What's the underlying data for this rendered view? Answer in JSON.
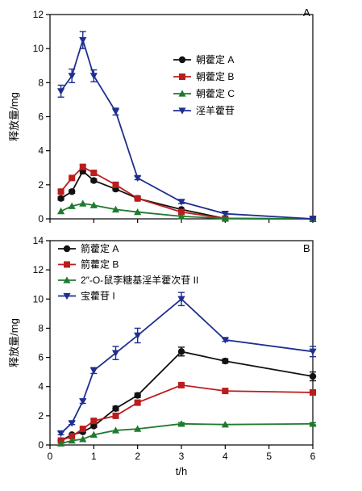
{
  "chart_data": [
    {
      "type": "line",
      "panel_label": "A",
      "xlabel": "",
      "ylabel": "释放量/mg",
      "x": [
        0.25,
        0.5,
        0.75,
        1,
        1.5,
        2,
        3,
        4,
        6
      ],
      "xlim": [
        0,
        6
      ],
      "ylim": [
        0,
        12
      ],
      "xticks": [],
      "yticks": [
        0,
        2,
        4,
        6,
        8,
        10,
        12
      ],
      "grid": false,
      "legend_position": "top-right",
      "series": [
        {
          "name": "朝藿定 A",
          "color": "#111111",
          "marker": "circle",
          "values": [
            1.2,
            1.6,
            2.8,
            2.25,
            1.75,
            1.2,
            0.55,
            0.02,
            0.0
          ],
          "errors": [
            0.1,
            0.1,
            0.15,
            0.1,
            0.1,
            0.05,
            0.05,
            0.02,
            0.02
          ]
        },
        {
          "name": "朝藿定 B",
          "color": "#bb1c1c",
          "marker": "square",
          "values": [
            1.6,
            2.4,
            3.05,
            2.7,
            2.0,
            1.2,
            0.4,
            0.02,
            0.0
          ],
          "errors": [
            0.1,
            0.1,
            0.15,
            0.1,
            0.1,
            0.05,
            0.05,
            0.02,
            0.02
          ]
        },
        {
          "name": "朝藿定 C",
          "color": "#1f7a2f",
          "marker": "triangle-up",
          "values": [
            0.45,
            0.75,
            0.9,
            0.8,
            0.55,
            0.4,
            0.15,
            0.02,
            0.0
          ],
          "errors": [
            0.05,
            0.05,
            0.05,
            0.05,
            0.05,
            0.03,
            0.03,
            0.02,
            0.02
          ]
        },
        {
          "name": "淫羊藿苷",
          "color": "#1e2f8f",
          "marker": "triangle-down",
          "values": [
            7.5,
            8.4,
            10.5,
            8.4,
            6.3,
            2.4,
            1.0,
            0.3,
            0.0
          ],
          "errors": [
            0.35,
            0.4,
            0.5,
            0.35,
            0.2,
            0.1,
            0.1,
            0.05,
            0.05
          ]
        }
      ]
    },
    {
      "type": "line",
      "panel_label": "B",
      "xlabel": "t/h",
      "ylabel": "释放量/mg",
      "x": [
        0.25,
        0.5,
        0.75,
        1,
        1.5,
        2,
        3,
        4,
        6
      ],
      "xlim": [
        0,
        6
      ],
      "ylim": [
        0,
        14
      ],
      "xticks": [
        0,
        1,
        2,
        3,
        4,
        5,
        6
      ],
      "yticks": [
        0,
        2,
        4,
        6,
        8,
        10,
        12,
        14
      ],
      "grid": false,
      "legend_position": "top-left",
      "series": [
        {
          "name": "箭藿定 A",
          "color": "#111111",
          "marker": "circle",
          "values": [
            0.3,
            0.7,
            0.9,
            1.3,
            2.5,
            3.4,
            6.4,
            5.75,
            4.7
          ],
          "errors": [
            0.05,
            0.05,
            0.05,
            0.1,
            0.15,
            0.15,
            0.3,
            0.15,
            0.3
          ]
        },
        {
          "name": "箭藿定 B",
          "color": "#bb1c1c",
          "marker": "square",
          "values": [
            0.3,
            0.6,
            1.1,
            1.65,
            2.0,
            2.9,
            4.1,
            3.7,
            3.6
          ],
          "errors": [
            0.05,
            0.05,
            0.05,
            0.1,
            0.1,
            0.15,
            0.15,
            0.1,
            0.1
          ]
        },
        {
          "name": "2″-O-鼠李糖基淫羊藿次苷 II",
          "color": "#1f7a2f",
          "marker": "triangle-up",
          "values": [
            0.1,
            0.3,
            0.4,
            0.7,
            1.0,
            1.1,
            1.45,
            1.4,
            1.45
          ],
          "errors": [
            0.03,
            0.03,
            0.03,
            0.05,
            0.05,
            0.05,
            0.08,
            0.05,
            0.08
          ]
        },
        {
          "name": "宝藿苷 I",
          "color": "#1e2f8f",
          "marker": "triangle-down",
          "values": [
            0.8,
            1.5,
            3.0,
            5.1,
            6.3,
            7.5,
            10.0,
            7.2,
            6.4
          ],
          "errors": [
            0.1,
            0.1,
            0.15,
            0.2,
            0.45,
            0.5,
            0.45,
            0.1,
            0.35
          ]
        }
      ]
    }
  ]
}
